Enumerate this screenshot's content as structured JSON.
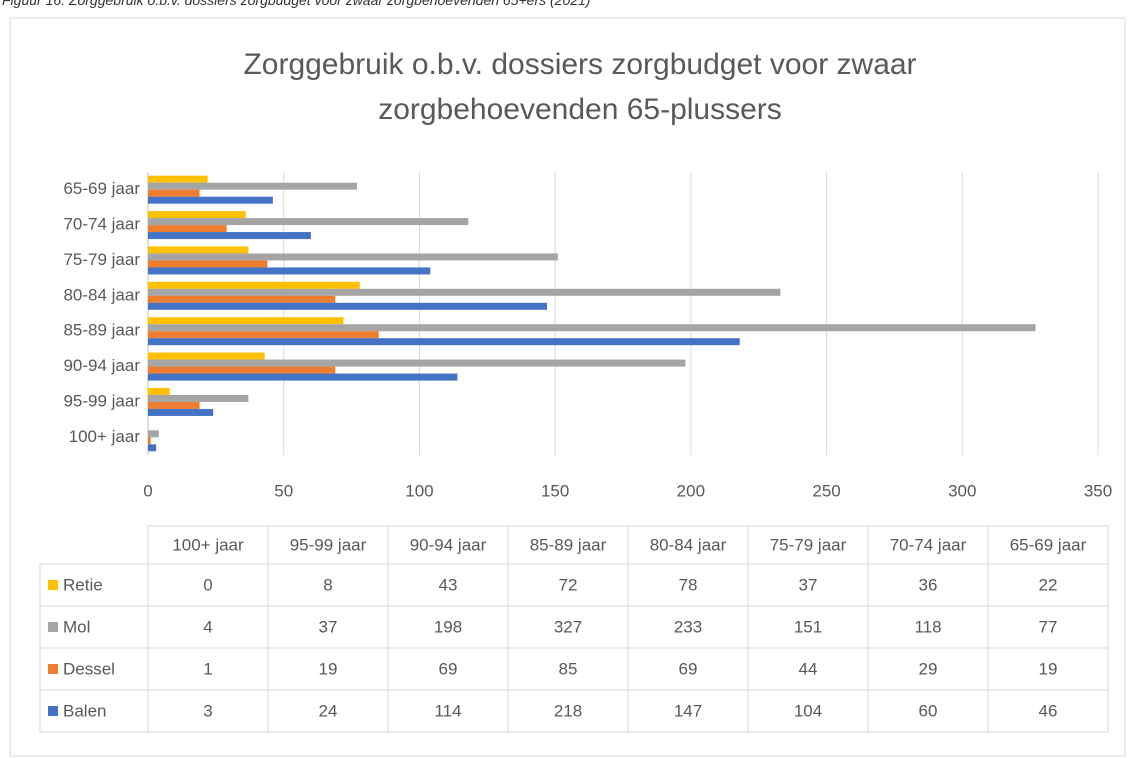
{
  "caption": "Figuur 16: Zorggebruik o.b.v. dossiers zorgbudget voor zwaar zorgbehoevenden 65+ers (2021)",
  "chart_data": {
    "type": "bar",
    "orientation": "horizontal",
    "title": "Zorggebruik o.b.v. dossiers zorgbudget voor zwaar zorgbehoevenden 65-plussers",
    "categories": [
      "100+ jaar",
      "95-99 jaar",
      "90-94 jaar",
      "85-89 jaar",
      "80-84 jaar",
      "75-79 jaar",
      "70-74 jaar",
      "65-69 jaar"
    ],
    "series": [
      {
        "name": "Retie",
        "color": "#ffc000",
        "values": [
          0,
          8,
          43,
          72,
          78,
          37,
          36,
          22
        ]
      },
      {
        "name": "Mol",
        "color": "#a5a5a5",
        "values": [
          4,
          37,
          198,
          327,
          233,
          151,
          118,
          77
        ]
      },
      {
        "name": "Dessel",
        "color": "#ed7d31",
        "values": [
          1,
          19,
          69,
          85,
          69,
          44,
          29,
          19
        ]
      },
      {
        "name": "Balen",
        "color": "#4472c4",
        "values": [
          3,
          24,
          114,
          218,
          147,
          104,
          60,
          46
        ]
      }
    ],
    "xlim": [
      0,
      350
    ],
    "xticks": [
      0,
      50,
      100,
      150,
      200,
      250,
      300,
      350
    ],
    "grid": true
  }
}
